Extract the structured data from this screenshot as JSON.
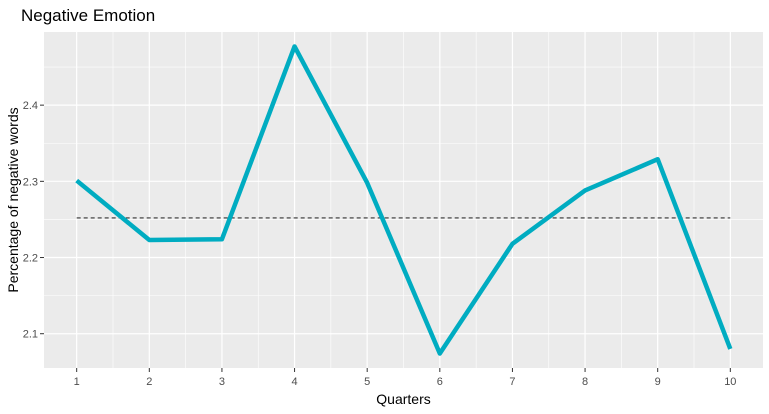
{
  "chart_data": {
    "type": "line",
    "title": "Negative Emotion",
    "xlabel": "Quarters",
    "ylabel": "Percentage of negative words",
    "x": [
      1,
      2,
      3,
      4,
      5,
      6,
      7,
      8,
      9,
      10
    ],
    "series": [
      {
        "values": [
          2.301,
          2.223,
          2.224,
          2.477,
          2.298,
          2.074,
          2.218,
          2.288,
          2.329,
          2.08
        ],
        "color": "#00acc1"
      }
    ],
    "reference_line": {
      "value": 2.252,
      "style": "dashed",
      "color": "#000000"
    },
    "xlim": [
      0.55,
      10.45
    ],
    "ylim": [
      2.055,
      2.496
    ],
    "yticks": [
      2.1,
      2.2,
      2.3,
      2.4
    ],
    "ytick_labels": [
      "2.1",
      "2.2",
      "2.3",
      "2.4"
    ],
    "xticks": [
      1,
      2,
      3,
      4,
      5,
      6,
      7,
      8,
      9,
      10
    ],
    "xtick_labels": [
      "1",
      "2",
      "3",
      "4",
      "5",
      "6",
      "7",
      "8",
      "9",
      "10"
    ],
    "panel_background": "#ebebeb",
    "grid": true,
    "legend": "none"
  }
}
